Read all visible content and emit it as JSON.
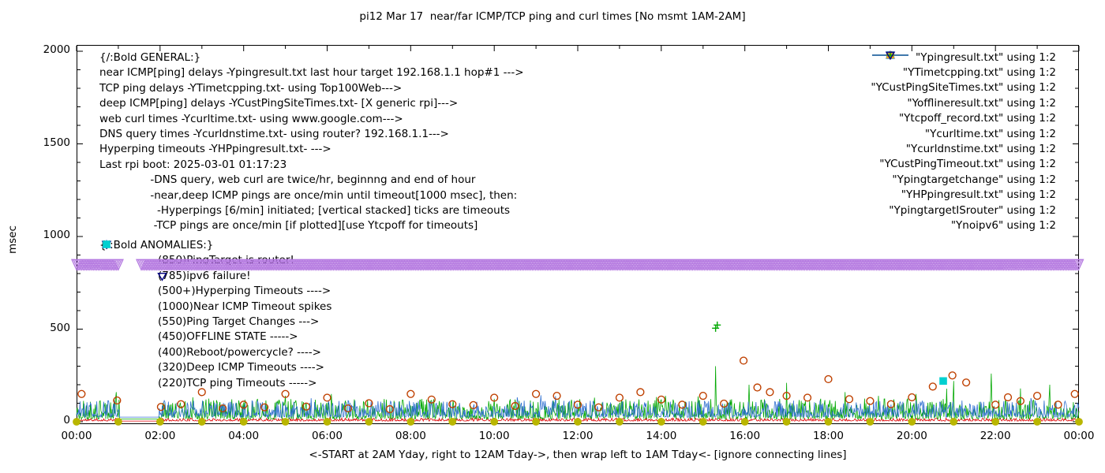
{
  "title": "pi12 Mar 17  near/far ICMP/TCP ping and curl times [No msmt 1AM-2AM]",
  "axes": {
    "y_label": "msec",
    "x_label": "<-START at 2AM Yday, right to 12AM Tday->, then wrap left to 1AM Tday<- [ignore connecting lines]",
    "x_ticks": [
      "00:00",
      "02:00",
      "04:00",
      "06:00",
      "08:00",
      "10:00",
      "12:00",
      "14:00",
      "16:00",
      "18:00",
      "20:00",
      "22:00",
      "00:00"
    ],
    "y_ticks": [
      "0",
      "500",
      "1000",
      "1500",
      "2000"
    ]
  },
  "annotations": {
    "general": [
      "{/:Bold GENERAL:}",
      "near ICMP[ping] delays -Ypingresult.txt last hour target 192.168.1.1 hop#1 --->",
      "TCP ping delays -YTimetcpping.txt- using Top100Web--->",
      "deep ICMP[ping] delays -YCustPingSiteTimes.txt- [X generic rpi]--->",
      "web curl times -Ycurltime.txt- using www.google.com--->",
      "DNS query times -Ycurldnstime.txt- using router? 192.168.1.1--->",
      "Hyperping timeouts -YHPpingresult.txt- --->",
      "Last rpi boot: 2025-03-01 01:17:23",
      "               -DNS query, web curl are twice/hr, beginnng and end of hour",
      "               -near,deep ICMP pings are once/min until timeout[1000 msec], then:",
      "                 -Hyperpings [6/min] initiated; [vertical stacked] ticks are timeouts",
      "                -TCP pings are once/min [if plotted][use Ytcpoff for timeouts]"
    ],
    "anomalies_header": "{/:Bold ANOMALIES:}",
    "anomalies": [
      {
        "marker": "triangle-down-open",
        "color": "#b478e0",
        "text": "(850)PingTarget is router!"
      },
      {
        "marker": "triangle-down-open",
        "color": "#000080",
        "text": "(785)ipv6 failure!"
      },
      {
        "marker": "plus",
        "color": "#00a800",
        "text": "(500+)Hyperping Timeouts ---->"
      },
      {
        "marker": null,
        "color": null,
        "text": "(1000)Near ICMP Timeout spikes"
      },
      {
        "marker": "triangle-up-filled",
        "color": "#ffa600",
        "text": "(550)Ping Target Changes --->"
      },
      {
        "marker": "square-open",
        "color": "#d000d0",
        "text": "(450)OFFLINE STATE ----->"
      },
      {
        "marker": null,
        "color": null,
        "text": "(400)Reboot/powercycle? ---->"
      },
      {
        "marker": "triangle-up-open",
        "color": "#4f81d0",
        "text": "(320)Deep ICMP Timeouts ---->"
      },
      {
        "marker": "square-filled",
        "color": "#00d0d0",
        "text": "(220)TCP ping Timeouts ----->"
      }
    ]
  },
  "legend": [
    {
      "label": "\"Ypingresult.txt\" using 1:2",
      "key": "line",
      "color": "#dd0000"
    },
    {
      "label": "\"YTimetcpping.txt\" using 1:2",
      "key": "line",
      "color": "#00a800"
    },
    {
      "label": "\"YCustPingSiteTimes.txt\" using 1:2",
      "key": "line",
      "color": "#2f6fd0"
    },
    {
      "label": "\"Yofflineresult.txt\" using 1:2",
      "key": "square-open",
      "color": "#d000d0"
    },
    {
      "label": "\"Ytcpoff_record.txt\" using 1:2",
      "key": "square-filled",
      "color": "#00d0d0"
    },
    {
      "label": "\"Ycurltime.txt\" using 1:2",
      "key": "circle-open",
      "color": "#bf4000"
    },
    {
      "label": "\"Ycurldnstime.txt\" using 1:2",
      "key": "circle-filled",
      "color": "#b9b600"
    },
    {
      "label": "\"YCustPingTimeout.txt\" using 1:2",
      "key": "triangle-up-open",
      "color": "#4f81d0"
    },
    {
      "label": "\"Ypingtargetchange\" using 1:2",
      "key": "triangle-up-filled",
      "color": "#ffa600"
    },
    {
      "label": "\"YHPpingresult.txt\" using 1:2",
      "key": "plus",
      "color": "#00a800"
    },
    {
      "label": "\"YpingtargetISrouter\" using 1:2",
      "key": "triangle-down-open",
      "color": "#b478e0"
    },
    {
      "label": "\"Ynoipv6\" using 1:2",
      "key": "triangle-down-open",
      "color": "#000080"
    }
  ],
  "chart_data": {
    "type": "line",
    "title": "pi12 Mar 17  near/far ICMP/TCP ping and curl times [No msmt 1AM-2AM]",
    "xlabel": "<-START at 2AM Yday, right to 12AM Tday->, then wrap left to 1AM Tday<- [ignore connecting lines]",
    "ylabel": "msec",
    "ylim": [
      0,
      2000
    ],
    "x_range_hours": [
      0,
      24
    ],
    "x_tick_interval_hours": 2,
    "y_tick_interval": 500,
    "grid": false,
    "legend_position": "top-right-inside",
    "no_measurement_window_hours": [
      1,
      2
    ],
    "series": [
      {
        "name": "Ypingresult.txt",
        "style": "line",
        "color": "#dd0000",
        "baseline_msec": 4,
        "noise_msec": 8,
        "spikes": []
      },
      {
        "name": "YTimetcpping.txt",
        "style": "line",
        "color": "#00a800",
        "baseline_msec": 15,
        "noise_msec": 55,
        "spikes": [
          [
            0.95,
            160
          ],
          [
            3.1,
            120
          ],
          [
            5.0,
            140
          ],
          [
            6.1,
            150
          ],
          [
            8.3,
            110
          ],
          [
            10.5,
            120
          ],
          [
            12.4,
            130
          ],
          [
            14.1,
            140
          ],
          [
            15.3,
            300
          ],
          [
            16.1,
            200
          ],
          [
            17.0,
            210
          ],
          [
            18.4,
            160
          ],
          [
            19.2,
            140
          ],
          [
            20.1,
            150
          ],
          [
            21.0,
            220
          ],
          [
            21.9,
            260
          ],
          [
            22.6,
            180
          ],
          [
            23.3,
            200
          ]
        ]
      },
      {
        "name": "YCustPingSiteTimes.txt",
        "style": "line",
        "color": "#2f6fd0",
        "baseline_msec": 25,
        "noise_msec": 45,
        "spikes": []
      },
      {
        "name": "Ycurltime.txt",
        "style": "points",
        "marker": "circle-open",
        "color": "#bf4000",
        "points": [
          [
            0.12,
            150
          ],
          [
            0.97,
            115
          ],
          [
            2.02,
            80
          ],
          [
            2.5,
            95
          ],
          [
            3.0,
            160
          ],
          [
            3.5,
            72
          ],
          [
            4.0,
            92
          ],
          [
            4.5,
            78
          ],
          [
            5.0,
            150
          ],
          [
            5.5,
            82
          ],
          [
            6.0,
            130
          ],
          [
            6.5,
            72
          ],
          [
            7.0,
            100
          ],
          [
            7.5,
            68
          ],
          [
            8.0,
            150
          ],
          [
            8.5,
            120
          ],
          [
            9.0,
            95
          ],
          [
            9.5,
            90
          ],
          [
            10.0,
            130
          ],
          [
            10.5,
            85
          ],
          [
            11.0,
            150
          ],
          [
            11.5,
            140
          ],
          [
            12.0,
            92
          ],
          [
            12.5,
            78
          ],
          [
            13.0,
            130
          ],
          [
            13.5,
            160
          ],
          [
            14.0,
            120
          ],
          [
            14.5,
            92
          ],
          [
            15.0,
            140
          ],
          [
            15.5,
            98
          ],
          [
            15.97,
            330
          ],
          [
            16.3,
            185
          ],
          [
            16.6,
            160
          ],
          [
            17.0,
            140
          ],
          [
            17.5,
            130
          ],
          [
            18.0,
            230
          ],
          [
            18.5,
            122
          ],
          [
            19.0,
            112
          ],
          [
            19.5,
            95
          ],
          [
            20.0,
            132
          ],
          [
            20.5,
            190
          ],
          [
            20.97,
            250
          ],
          [
            21.3,
            212
          ],
          [
            22.0,
            92
          ],
          [
            22.3,
            132
          ],
          [
            22.6,
            112
          ],
          [
            23.0,
            140
          ],
          [
            23.5,
            92
          ],
          [
            23.9,
            150
          ]
        ]
      },
      {
        "name": "Ycurldnstime.txt",
        "style": "points",
        "marker": "circle-filled",
        "color": "#b9b600",
        "points": [
          [
            0,
            0
          ],
          [
            1,
            0
          ],
          [
            2,
            0
          ],
          [
            3,
            0
          ],
          [
            4,
            0
          ],
          [
            5,
            0
          ],
          [
            6,
            0
          ],
          [
            7,
            0
          ],
          [
            8,
            0
          ],
          [
            9,
            0
          ],
          [
            10,
            0
          ],
          [
            11,
            0
          ],
          [
            12,
            0
          ],
          [
            13,
            0
          ],
          [
            14,
            0
          ],
          [
            15,
            0
          ],
          [
            16,
            0
          ],
          [
            17,
            0
          ],
          [
            18,
            0
          ],
          [
            19,
            0
          ],
          [
            20,
            0
          ],
          [
            21,
            0
          ],
          [
            22,
            0
          ],
          [
            23,
            0
          ],
          [
            24,
            0
          ]
        ]
      },
      {
        "name": "YpingtargetISrouter",
        "style": "band-points",
        "marker": "triangle-down-open",
        "color": "#b478e0",
        "value_msec": 850,
        "coverage_hours": [
          [
            0,
            1.02
          ],
          [
            1.55,
            24
          ]
        ],
        "spacing_hours": 0.04
      },
      {
        "name": "Ynoipv6",
        "style": "points",
        "marker": "triangle-down-open",
        "color": "#000080",
        "points": [
          [
            2.05,
            785
          ]
        ]
      },
      {
        "name": "YHPpingresult.txt",
        "style": "points",
        "marker": "plus",
        "color": "#00a800",
        "points": [
          [
            15.3,
            505
          ],
          [
            15.34,
            522
          ]
        ]
      },
      {
        "name": "Ytcpoff_record.txt",
        "style": "points",
        "marker": "square-filled",
        "color": "#00d0d0",
        "points": [
          [
            20.75,
            220
          ]
        ]
      }
    ]
  }
}
